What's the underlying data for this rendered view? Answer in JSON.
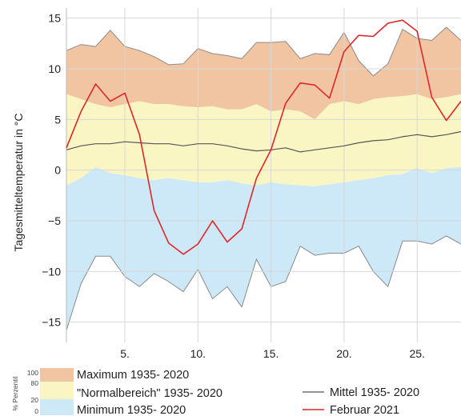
{
  "chart_data": {
    "type": "area",
    "title": "",
    "xlabel": "",
    "ylabel": "Tagesmitteltemperatur in °C",
    "xlim": [
      1,
      28
    ],
    "ylim": [
      -17,
      16
    ],
    "xticks": [
      5,
      10,
      15,
      20,
      25
    ],
    "xtick_labels": [
      "5.",
      "10.",
      "15.",
      "20.",
      "25."
    ],
    "yticks": [
      -15,
      -10,
      -5,
      0,
      5,
      10,
      15
    ],
    "grid": true,
    "x": [
      1,
      2,
      3,
      4,
      5,
      6,
      7,
      8,
      9,
      10,
      11,
      12,
      13,
      14,
      15,
      16,
      17,
      18,
      19,
      20,
      21,
      22,
      23,
      24,
      25,
      26,
      27,
      28
    ],
    "bands": [
      {
        "name": "Maximum 1935- 2020",
        "color": "#f2c5a2",
        "lower": [
          7.5,
          7.0,
          6.5,
          6.2,
          6.5,
          6.8,
          6.5,
          6.5,
          6.3,
          6.2,
          6.3,
          6.0,
          6.0,
          6.5,
          5.8,
          6.0,
          5.8,
          5.0,
          6.5,
          6.8,
          6.5,
          7.0,
          7.2,
          7.3,
          7.5,
          7.0,
          7.2,
          7.5
        ],
        "upper": [
          11.8,
          12.4,
          12.2,
          13.8,
          12.2,
          11.8,
          11.2,
          10.4,
          10.5,
          12.0,
          11.5,
          11.3,
          11.0,
          12.6,
          12.6,
          12.7,
          11.0,
          11.5,
          11.4,
          13.6,
          10.8,
          9.3,
          10.5,
          13.9,
          13.0,
          12.8,
          14.1,
          12.8
        ]
      },
      {
        "name": "\"Normalbereich\" 1935- 2020",
        "color": "#f9f6c4",
        "lower": [
          -1.5,
          -0.8,
          0.3,
          -0.3,
          -0.5,
          -0.8,
          -1.0,
          -0.8,
          -1.0,
          -1.2,
          -1.2,
          -1.0,
          -1.3,
          -1.5,
          -1.2,
          -1.4,
          -1.5,
          -1.6,
          -1.4,
          -1.2,
          -1.0,
          -0.8,
          -0.5,
          -0.4,
          0.2,
          -0.3,
          0.2,
          0.3
        ],
        "upper": [
          7.5,
          7.0,
          6.5,
          6.2,
          6.5,
          6.8,
          6.5,
          6.5,
          6.3,
          6.2,
          6.3,
          6.0,
          6.0,
          6.5,
          5.8,
          6.0,
          5.8,
          5.0,
          6.5,
          6.8,
          6.5,
          7.0,
          7.2,
          7.3,
          7.5,
          7.0,
          7.2,
          7.5
        ]
      },
      {
        "name": "Minimum 1935- 2020",
        "color": "#cde8f6",
        "lower": [
          -15.8,
          -11.2,
          -8.5,
          -8.5,
          -10.5,
          -11.5,
          -10.2,
          -11.0,
          -12.0,
          -9.8,
          -12.7,
          -11.5,
          -13.5,
          -8.8,
          -11.5,
          -11.0,
          -7.5,
          -8.4,
          -8.2,
          -8.2,
          -7.5,
          -10.0,
          -11.5,
          -7.0,
          -7.0,
          -7.3,
          -6.5,
          -7.3
        ],
        "upper": [
          -1.5,
          -0.8,
          0.3,
          -0.3,
          -0.5,
          -0.8,
          -1.0,
          -0.8,
          -1.0,
          -1.2,
          -1.2,
          -1.0,
          -1.3,
          -1.5,
          -1.2,
          -1.4,
          -1.5,
          -1.6,
          -1.4,
          -1.2,
          -1.0,
          -0.8,
          -0.5,
          -0.4,
          0.2,
          -0.3,
          0.2,
          0.3
        ]
      }
    ],
    "series": [
      {
        "name": "Mittel 1935- 2020",
        "color": "#555555",
        "values": [
          2.0,
          2.4,
          2.6,
          2.6,
          2.8,
          2.7,
          2.6,
          2.6,
          2.4,
          2.6,
          2.6,
          2.4,
          2.1,
          1.9,
          2.0,
          2.2,
          1.8,
          2.0,
          2.2,
          2.4,
          2.7,
          2.9,
          3.0,
          3.3,
          3.5,
          3.3,
          3.5,
          3.8
        ]
      },
      {
        "name": "Februar 2021",
        "color": "#e0262b",
        "values": [
          2.2,
          5.8,
          8.5,
          6.8,
          7.6,
          3.5,
          -4.0,
          -7.2,
          -8.3,
          -7.3,
          -5.0,
          -7.1,
          -5.8,
          -0.8,
          2.0,
          6.6,
          8.6,
          8.4,
          7.1,
          11.7,
          13.3,
          13.2,
          14.5,
          14.8,
          13.7,
          7.2,
          4.9,
          6.8
        ]
      }
    ],
    "legend": {
      "placement": "bottom",
      "percentile_axis_label": "% Perzentil",
      "percentile_ticks": [
        "100",
        "80",
        "20",
        "0"
      ]
    }
  }
}
